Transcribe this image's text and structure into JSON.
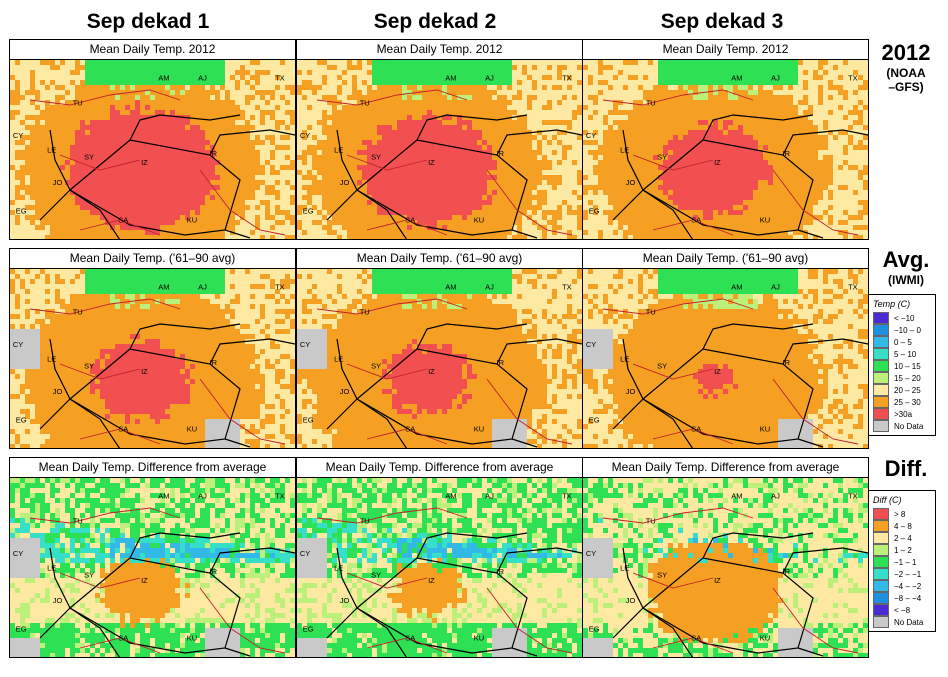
{
  "columns": [
    "Sep dekad 1",
    "Sep dekad 2",
    "Sep dekad 3"
  ],
  "rows": [
    {
      "title": "Mean Daily Temp. 2012",
      "label": "2012",
      "sublabel": "(NOAA\n–GFS)",
      "maps": [
        {
          "red": 0.62,
          "orange": 0.22,
          "tan": 0.1,
          "green": 0.06
        },
        {
          "red": 0.55,
          "orange": 0.25,
          "tan": 0.12,
          "green": 0.08
        },
        {
          "red": 0.45,
          "orange": 0.3,
          "tan": 0.15,
          "green": 0.1
        }
      ]
    },
    {
      "title": "Mean Daily Temp. ('61–90 avg)",
      "label": "Avg.",
      "sublabel": "(IWMI)",
      "maps": [
        {
          "red": 0.4,
          "orange": 0.35,
          "tan": 0.15,
          "green": 0.1
        },
        {
          "red": 0.35,
          "orange": 0.38,
          "tan": 0.17,
          "green": 0.1
        },
        {
          "red": 0.15,
          "orange": 0.45,
          "tan": 0.25,
          "green": 0.15
        }
      ]
    },
    {
      "title": "Mean Daily Temp. Difference from average",
      "label": "Diff.",
      "sublabel": "",
      "maps": [
        {
          "orange": 0.25,
          "tan": 0.35,
          "green": 0.28,
          "blue": 0.12
        },
        {
          "orange": 0.2,
          "tan": 0.38,
          "green": 0.32,
          "blue": 0.1
        },
        {
          "orange": 0.4,
          "tan": 0.4,
          "green": 0.18,
          "blue": 0.02
        }
      ]
    }
  ],
  "country_labels": [
    "AM",
    "AJ",
    "TX",
    "TU",
    "SY",
    "IR",
    "LE",
    "JO",
    "EG",
    "SA",
    "KU",
    "CY",
    "IZ"
  ],
  "temp_legend": {
    "title": "Temp (C)",
    "items": [
      {
        "label": "< −10",
        "color": "#4a2bd6"
      },
      {
        "label": "−10 – 0",
        "color": "#1f8fe0"
      },
      {
        "label": "0 –  5",
        "color": "#33b9e8"
      },
      {
        "label": "5 – 10",
        "color": "#36e0c8"
      },
      {
        "label": "10 – 15",
        "color": "#2ee053"
      },
      {
        "label": "15 – 20",
        "color": "#bdf07a"
      },
      {
        "label": "20 – 25",
        "color": "#fde9a1"
      },
      {
        "label": "25 – 30",
        "color": "#f5a023"
      },
      {
        "label": ">30a",
        "color": "#f25050"
      },
      {
        "label": "No Data",
        "color": "#c9c9c9"
      }
    ]
  },
  "diff_legend": {
    "title": "Diff (C)",
    "items": [
      {
        "label": "> 8",
        "color": "#f25050"
      },
      {
        "label": "4 – 8",
        "color": "#f5a023"
      },
      {
        "label": "2 – 4",
        "color": "#fde9a1"
      },
      {
        "label": "1 – 2",
        "color": "#bdf07a"
      },
      {
        "label": "−1 – 1",
        "color": "#2ee053"
      },
      {
        "label": "−2 – −1",
        "color": "#36e0c8"
      },
      {
        "label": "−4 – −2",
        "color": "#33b9e8"
      },
      {
        "label": "−8 – −4",
        "color": "#1f8fe0"
      },
      {
        "label": "< −8",
        "color": "#4a2bd6"
      },
      {
        "label": "No Data",
        "color": "#c9c9c9"
      }
    ]
  },
  "colors": {
    "red": "#f25050",
    "orange": "#f5a023",
    "tan": "#fde9a1",
    "lightgreen": "#bdf07a",
    "green": "#2ee053",
    "cyan": "#36e0c8",
    "blue": "#33b9e8",
    "darkblue": "#1f8fe0",
    "grey": "#c9c9c9"
  }
}
